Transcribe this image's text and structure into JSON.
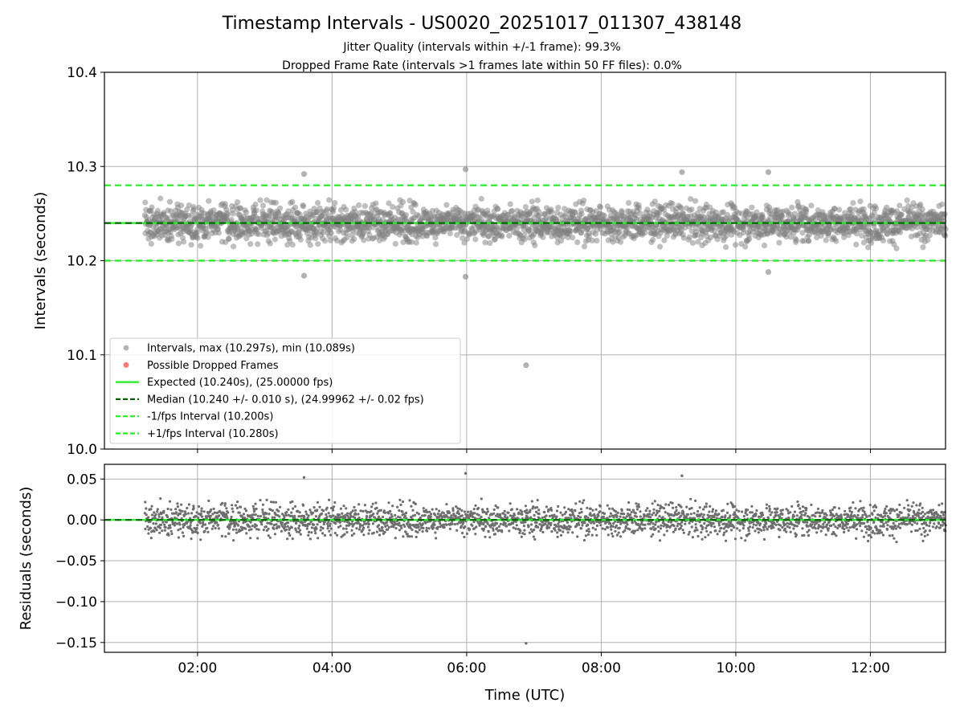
{
  "title": "Timestamp Intervals - US0020_20251017_011307_438148",
  "subtitle_lines": [
    "Jitter Quality (intervals within +/-1 frame): 99.3%",
    "Dropped Frame Rate (intervals >1 frames late within 50 FF files): 0.0%"
  ],
  "colors": {
    "points": "#808080",
    "dropped": "#ff5555",
    "expected": "#22ee22",
    "median": "#006400",
    "bounds": "#22ee22",
    "grid": "#b0b0b0"
  },
  "chart_data": [
    {
      "type": "scatter",
      "panel": "intervals",
      "ylabel": "Intervals (seconds)",
      "xlim": [
        "00:37",
        "13:07"
      ],
      "ylim": [
        10.0,
        10.4
      ],
      "x_ticks": [
        "02:00",
        "04:00",
        "06:00",
        "08:00",
        "10:00",
        "12:00"
      ],
      "y_ticks": [
        "10.0",
        "10.1",
        "10.2",
        "10.3",
        "10.4"
      ],
      "grid": true,
      "legend_position": "lower-left",
      "legend": [
        {
          "label": "Intervals, max (10.297s), min (10.089s)",
          "kind": "marker",
          "color": "#808080"
        },
        {
          "label": "Possible Dropped Frames",
          "kind": "marker",
          "color": "#ff5555"
        },
        {
          "label": "Expected (10.240s), (25.00000 fps)",
          "kind": "solid",
          "color": "#22ee22"
        },
        {
          "label": "Median (10.240 +/- 0.010 s), (24.99962 +/- 0.02 fps)",
          "kind": "dashed",
          "color": "#006400"
        },
        {
          "label": "-1/fps Interval (10.200s)",
          "kind": "dashed",
          "color": "#22ee22"
        },
        {
          "label": "+1/fps Interval (10.280s)",
          "kind": "dashed",
          "color": "#22ee22"
        }
      ],
      "reference_lines": {
        "expected": 10.24,
        "median": 10.24,
        "lower": 10.2,
        "upper": 10.28
      },
      "series_time_range": [
        "01:13",
        "13:07"
      ],
      "series_summary": {
        "center": 10.24,
        "max": 10.297,
        "min": 10.089
      },
      "notable_points": [
        {
          "x": "06:53",
          "y": 10.089
        },
        {
          "x": "05:59",
          "y": 10.297
        },
        {
          "x": "03:35",
          "y": 10.292
        },
        {
          "x": "09:12",
          "y": 10.294
        },
        {
          "x": "10:29",
          "y": 10.294
        },
        {
          "x": "03:35",
          "y": 10.184
        },
        {
          "x": "05:59",
          "y": 10.183
        },
        {
          "x": "10:29",
          "y": 10.188
        }
      ]
    },
    {
      "type": "scatter",
      "panel": "residuals",
      "xlabel": "Time (UTC)",
      "ylabel": "Residuals (seconds)",
      "xlim": [
        "00:37",
        "13:07"
      ],
      "ylim": [
        -0.162,
        0.068
      ],
      "x_ticks": [
        "02:00",
        "04:00",
        "06:00",
        "08:00",
        "10:00",
        "12:00"
      ],
      "y_ticks": [
        "0.05",
        "0.00",
        "−0.05",
        "−0.10",
        "−0.15"
      ],
      "grid": true,
      "reference_lines": {
        "zero": 0.0
      },
      "notable_points": [
        {
          "x": "06:53",
          "y": -0.151
        },
        {
          "x": "05:59",
          "y": 0.057
        },
        {
          "x": "03:35",
          "y": 0.052
        },
        {
          "x": "09:12",
          "y": 0.054
        }
      ]
    }
  ]
}
